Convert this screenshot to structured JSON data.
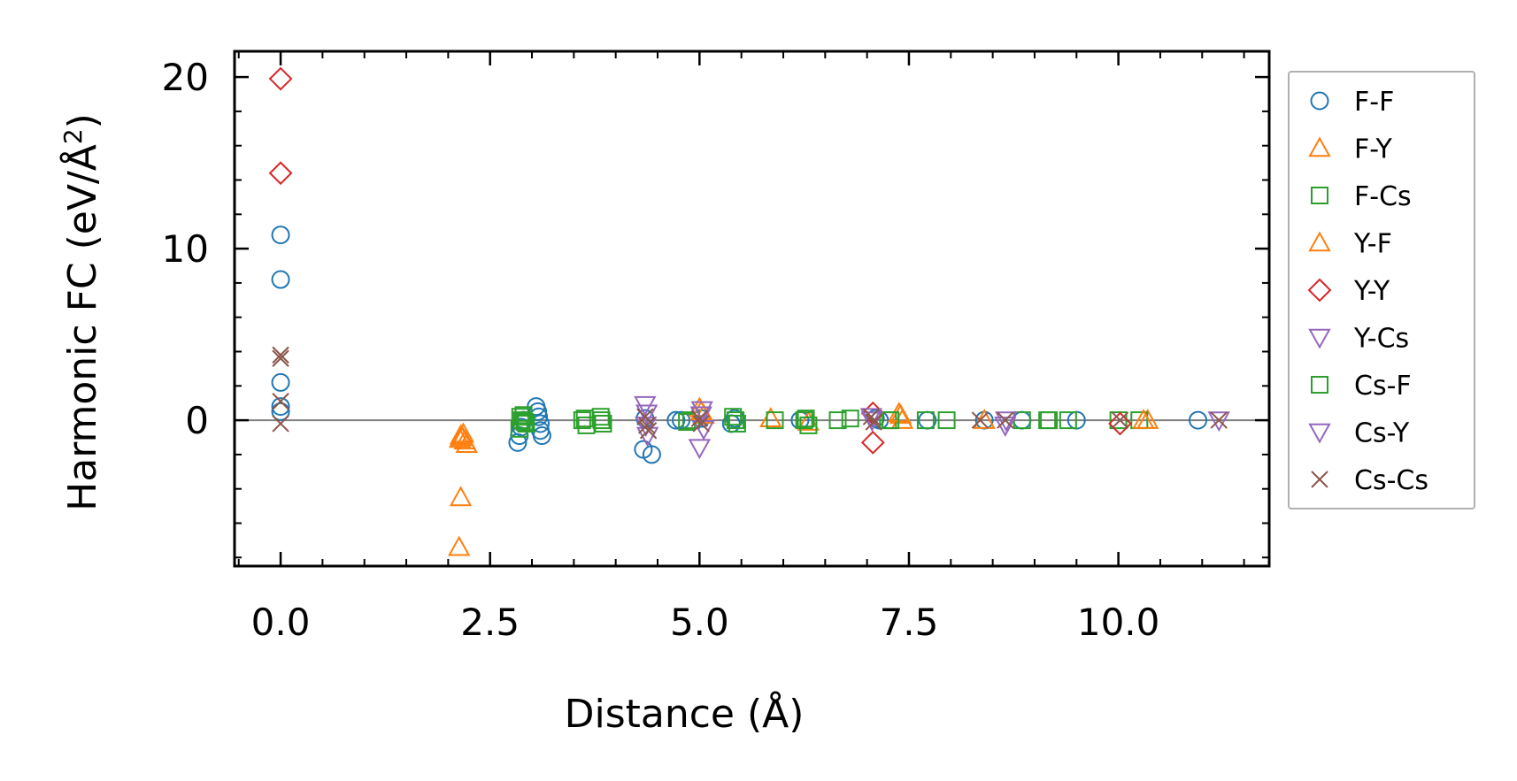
{
  "chart_data": {
    "type": "scatter",
    "title": "",
    "xlabel": "Distance (Å)",
    "ylabel_main": "Harmonic FC (eV/Å",
    "ylabel_sup": "2",
    "ylabel_close": ")",
    "xlim": [
      -0.55,
      11.8
    ],
    "ylim": [
      -8.5,
      21.5
    ],
    "xticks": [
      0.0,
      2.5,
      5.0,
      7.5,
      10.0
    ],
    "xtick_labels": [
      "0.0",
      "2.5",
      "5.0",
      "7.5",
      "10.0"
    ],
    "yticks": [
      0,
      10,
      20
    ],
    "ytick_labels": [
      "0",
      "10",
      "20"
    ],
    "x_minor_step": 0.5,
    "y_minor_step": 2,
    "reference_line_y": 0,
    "grid": false,
    "legend_position": "right-outside",
    "series": [
      {
        "name": "F-F",
        "marker": "circle",
        "color": "#1f77b4",
        "x": [
          0.0,
          0.0,
          0.0,
          0.0,
          0.0,
          2.83,
          2.85,
          2.87,
          2.9,
          3.05,
          3.07,
          3.08,
          3.1,
          3.1,
          3.12,
          4.33,
          4.43,
          4.35,
          4.72,
          4.78,
          5.02,
          5.38,
          5.42,
          6.2,
          7.1,
          7.15,
          7.72,
          8.4,
          8.85,
          9.5,
          10.95
        ],
        "y": [
          10.8,
          8.2,
          2.2,
          0.8,
          0.5,
          -1.3,
          -0.9,
          -0.4,
          0.0,
          0.8,
          0.5,
          0.2,
          -0.2,
          -0.6,
          -0.9,
          -1.7,
          -2.0,
          0.1,
          0.0,
          0.0,
          0.1,
          -0.2,
          0.1,
          0.0,
          0.1,
          0.0,
          0.0,
          0.0,
          0.0,
          0.0,
          0.0
        ]
      },
      {
        "name": "F-Y",
        "marker": "triangle-up",
        "color": "#ff7f0e",
        "x": [
          2.13,
          2.15,
          2.17,
          2.2,
          2.22,
          2.15,
          5.0,
          5.05,
          5.85,
          6.3,
          7.4,
          7.42,
          8.4,
          10.35
        ],
        "y": [
          -7.4,
          -4.5,
          -1.0,
          -1.2,
          -1.4,
          -0.9,
          0.7,
          0.3,
          0.1,
          -0.1,
          0.3,
          0.0,
          0.0,
          0.0
        ]
      },
      {
        "name": "F-Cs",
        "marker": "square",
        "color": "#2ca02c",
        "x": [
          2.85,
          2.88,
          2.9,
          2.93,
          3.6,
          3.65,
          3.82,
          3.85,
          4.85,
          4.9,
          5.4,
          5.45,
          5.9,
          6.25,
          6.3,
          6.65,
          6.8,
          7.25,
          7.7,
          7.95,
          8.85,
          9.15,
          9.4,
          10.0,
          10.25
        ],
        "y": [
          -0.5,
          0.0,
          0.3,
          -0.2,
          0.0,
          -0.3,
          0.2,
          -0.2,
          -0.1,
          0.0,
          0.2,
          -0.2,
          0.0,
          0.0,
          -0.3,
          0.0,
          0.1,
          0.0,
          0.0,
          0.0,
          0.0,
          0.0,
          0.0,
          0.0,
          0.0
        ]
      },
      {
        "name": "Y-F",
        "marker": "triangle-up",
        "color": "#ff7f0e",
        "x": [
          2.14,
          2.18,
          5.02,
          7.38,
          10.3
        ],
        "y": [
          -1.1,
          -0.8,
          0.5,
          0.4,
          0.0
        ]
      },
      {
        "name": "Y-Y",
        "marker": "diamond",
        "color": "#d62728",
        "x": [
          0.0,
          0.0,
          7.07,
          7.07,
          10.02
        ],
        "y": [
          19.9,
          14.4,
          0.4,
          -1.3,
          -0.2
        ]
      },
      {
        "name": "Y-Cs",
        "marker": "triangle-down",
        "color": "#9467bd",
        "x": [
          4.35,
          4.36,
          4.38,
          5.0,
          5.02,
          5.05,
          7.05,
          8.65,
          11.2
        ],
        "y": [
          0.9,
          -0.3,
          -0.9,
          -1.6,
          0.3,
          -0.5,
          0.2,
          -0.3,
          0.0
        ]
      },
      {
        "name": "Cs-F",
        "marker": "square",
        "color": "#2ca02c",
        "x": [
          2.86,
          2.91,
          3.63,
          3.83,
          5.43,
          6.27,
          7.28,
          9.17
        ],
        "y": [
          0.2,
          -0.1,
          0.1,
          0.0,
          0.0,
          0.1,
          0.0,
          0.0
        ]
      },
      {
        "name": "Cs-Y",
        "marker": "triangle-down",
        "color": "#9467bd",
        "x": [
          4.37,
          5.03,
          7.06,
          8.66
        ],
        "y": [
          0.4,
          0.6,
          0.0,
          0.0
        ]
      },
      {
        "name": "Cs-Cs",
        "marker": "x",
        "color": "#8c564b",
        "x": [
          0.0,
          0.0,
          0.0,
          0.0,
          4.35,
          4.37,
          4.39,
          5.0,
          5.02,
          7.05,
          7.08,
          8.35,
          8.65,
          10.02,
          11.2
        ],
        "y": [
          3.8,
          3.6,
          1.1,
          -0.2,
          0.2,
          -0.3,
          -0.6,
          0.1,
          -0.2,
          0.2,
          -0.1,
          0.0,
          0.0,
          0.0,
          0.0
        ]
      }
    ]
  }
}
